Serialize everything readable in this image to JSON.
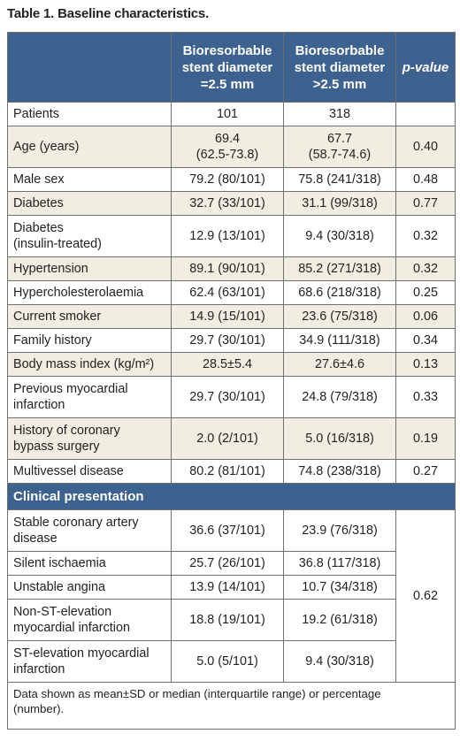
{
  "caption": "Table 1. Baseline characteristics.",
  "header": {
    "col1": "",
    "col2": [
      "Bioresorbable",
      "stent diameter",
      "=2.5 mm"
    ],
    "col3": [
      "Bioresorbable",
      "stent diameter",
      ">2.5 mm"
    ],
    "col4": "p-value"
  },
  "rows": [
    {
      "label": [
        "Patients"
      ],
      "a": [
        "101"
      ],
      "b": [
        "318"
      ],
      "p": ""
    },
    {
      "label": [
        "Age (years)"
      ],
      "a": [
        "69.4",
        "(62.5-73.8)"
      ],
      "b": [
        "67.7",
        "(58.7-74.6)"
      ],
      "p": "0.40"
    },
    {
      "label": [
        "Male sex"
      ],
      "a": [
        "79.2 (80/101)"
      ],
      "b": [
        "75.8 (241/318)"
      ],
      "p": "0.48"
    },
    {
      "label": [
        "Diabetes"
      ],
      "a": [
        "32.7 (33/101)"
      ],
      "b": [
        "31.1 (99/318)"
      ],
      "p": "0.77"
    },
    {
      "label": [
        "Diabetes",
        "(insulin-treated)"
      ],
      "a": [
        "12.9 (13/101)"
      ],
      "b": [
        "9.4 (30/318)"
      ],
      "p": "0.32"
    },
    {
      "label": [
        "Hypertension"
      ],
      "a": [
        "89.1 (90/101)"
      ],
      "b": [
        "85.2 (271/318)"
      ],
      "p": "0.32"
    },
    {
      "label": [
        "Hypercholesterolaemia"
      ],
      "a": [
        "62.4 (63/101)"
      ],
      "b": [
        "68.6 (218/318)"
      ],
      "p": "0.25"
    },
    {
      "label": [
        "Current smoker"
      ],
      "a": [
        "14.9 (15/101)"
      ],
      "b": [
        "23.6 (75/318)"
      ],
      "p": "0.06"
    },
    {
      "label": [
        "Family history"
      ],
      "a": [
        "29.7 (30/101)"
      ],
      "b": [
        "34.9 (111/318)"
      ],
      "p": "0.34"
    },
    {
      "label": [
        "Body mass index (kg/m²)"
      ],
      "a": [
        "28.5±5.4"
      ],
      "b": [
        "27.6±4.6"
      ],
      "p": "0.13"
    },
    {
      "label": [
        "Previous myocardial",
        "infarction"
      ],
      "a": [
        "29.7 (30/101)"
      ],
      "b": [
        "24.8 (79/318)"
      ],
      "p": "0.33"
    },
    {
      "label": [
        "History of coronary",
        "bypass surgery"
      ],
      "a": [
        "2.0 (2/101)"
      ],
      "b": [
        "5.0 (16/318)"
      ],
      "p": "0.19"
    },
    {
      "label": [
        "Multivessel disease"
      ],
      "a": [
        "80.2 (81/101)"
      ],
      "b": [
        "74.8 (238/318)"
      ],
      "p": "0.27"
    }
  ],
  "section_title": "Clinical presentation",
  "clinical_p": "0.62",
  "clinical_rows": [
    {
      "label": [
        "Stable coronary artery",
        "disease"
      ],
      "a": [
        "36.6 (37/101)"
      ],
      "b": [
        "23.9 (76/318)"
      ]
    },
    {
      "label": [
        "Silent ischaemia"
      ],
      "a": [
        "25.7 (26/101)"
      ],
      "b": [
        "36.8 (117/318)"
      ]
    },
    {
      "label": [
        "Unstable angina"
      ],
      "a": [
        "13.9 (14/101)"
      ],
      "b": [
        "10.7 (34/318)"
      ]
    },
    {
      "label": [
        "Non-ST-elevation",
        "myocardial infarction"
      ],
      "a": [
        "18.8 (19/101)"
      ],
      "b": [
        "19.2 (61/318)"
      ]
    },
    {
      "label": [
        "ST-elevation myocardial",
        "infarction"
      ],
      "a": [
        "5.0 (5/101)"
      ],
      "b": [
        "9.4 (30/318)"
      ]
    }
  ],
  "footnote": [
    "Data shown as mean±SD or median (interquartile range) or percentage",
    "(number)."
  ]
}
